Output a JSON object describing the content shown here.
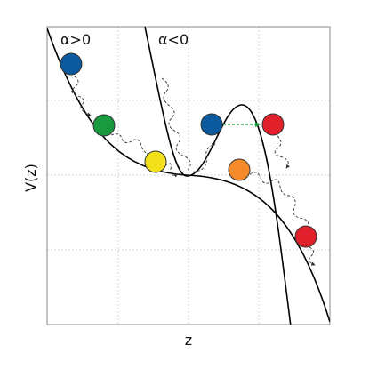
{
  "labels": {
    "alpha_positive": "α>0",
    "alpha_negative": "α<0",
    "y_axis": "V(z)",
    "x_axis": "z"
  }
}
